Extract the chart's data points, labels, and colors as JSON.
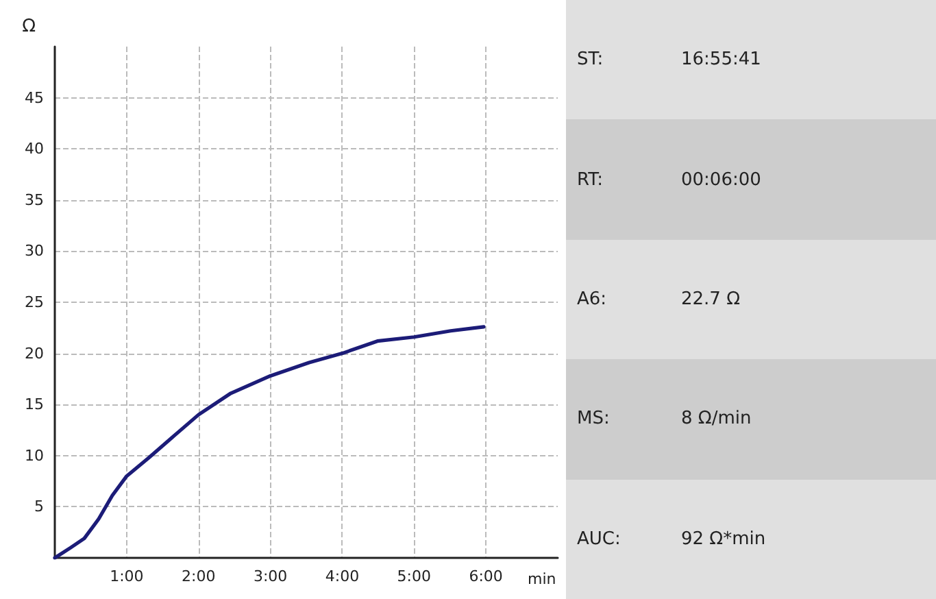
{
  "chart_data": [
    {
      "type": "line",
      "xlabel": "min",
      "ylabel": "Ω",
      "x": [
        0,
        0.22,
        0.41,
        0.61,
        0.8,
        1.0,
        1.31,
        1.62,
        2.0,
        2.45,
        3.0,
        3.54,
        4.0,
        4.49,
        5.0,
        5.51,
        5.97
      ],
      "series": [
        {
          "color": "#1c1c78",
          "values": [
            0,
            1.0,
            1.9,
            3.8,
            6.1,
            8.0,
            9.8,
            11.7,
            14.0,
            16.1,
            17.8,
            19.1,
            20.0,
            21.2,
            21.6,
            22.2,
            22.6
          ]
        }
      ],
      "xlim": [
        0,
        7
      ],
      "xticks": [
        {
          "value": 1,
          "label": "1:00"
        },
        {
          "value": 2,
          "label": "2:00"
        },
        {
          "value": 3,
          "label": "3:00"
        },
        {
          "value": 4,
          "label": "4:00"
        },
        {
          "value": 5,
          "label": "5:00"
        },
        {
          "value": 6,
          "label": "6:00"
        }
      ],
      "ylim": [
        0,
        50
      ],
      "yticks": [
        5,
        10,
        15,
        20,
        25,
        30,
        35,
        40,
        45
      ],
      "grid": true,
      "marker": "none",
      "line_style": "solid"
    },
    {
      "type": "other",
      "annotations": [
        "ST:",
        "16:55:41",
        "RT:",
        "00:06:00",
        "A6:",
        "22.7 Ω",
        "MS:",
        "8 Ω/min",
        "AUC:",
        "92 Ω*min"
      ]
    }
  ]
}
